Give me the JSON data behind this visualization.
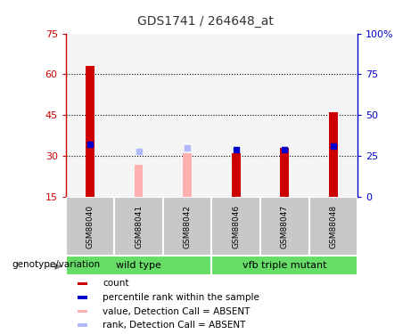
{
  "title": "GDS1741 / 264648_at",
  "samples": [
    "GSM88040",
    "GSM88041",
    "GSM88042",
    "GSM88046",
    "GSM88047",
    "GSM88048"
  ],
  "red_bar_values": [
    63,
    0,
    0,
    31,
    33,
    46
  ],
  "blue_marker_values": [
    32,
    null,
    null,
    29,
    29,
    31
  ],
  "pink_bar_values": [
    null,
    27,
    31,
    null,
    null,
    null
  ],
  "lightblue_marker_values": [
    null,
    28,
    30,
    null,
    null,
    null
  ],
  "ylim_left": [
    15,
    75
  ],
  "ylim_right": [
    0,
    100
  ],
  "yticks_left": [
    15,
    30,
    45,
    60,
    75
  ],
  "yticks_right": [
    0,
    25,
    50,
    75,
    100
  ],
  "ytick_labels_right": [
    "0",
    "25",
    "50",
    "75",
    "100%"
  ],
  "grid_lines": [
    30,
    45,
    60
  ],
  "wild_type_indices": [
    0,
    1,
    2
  ],
  "mutant_indices": [
    3,
    4,
    5
  ],
  "wild_type_label": "wild type",
  "mutant_label": "vfb triple mutant",
  "genotype_label": "genotype/variation",
  "legend_items": [
    "count",
    "percentile rank within the sample",
    "value, Detection Call = ABSENT",
    "rank, Detection Call = ABSENT"
  ],
  "colors": {
    "red": "#cc0000",
    "blue": "#0000cc",
    "pink": "#ffb0b0",
    "lightblue": "#b0b8ff",
    "green": "#66dd66",
    "sample_bg": "#c8c8c8",
    "plot_bg": "#f0f0f0",
    "title": "#333333"
  },
  "bar_width": 0.18,
  "figsize": [
    4.61,
    3.75
  ],
  "dpi": 100
}
